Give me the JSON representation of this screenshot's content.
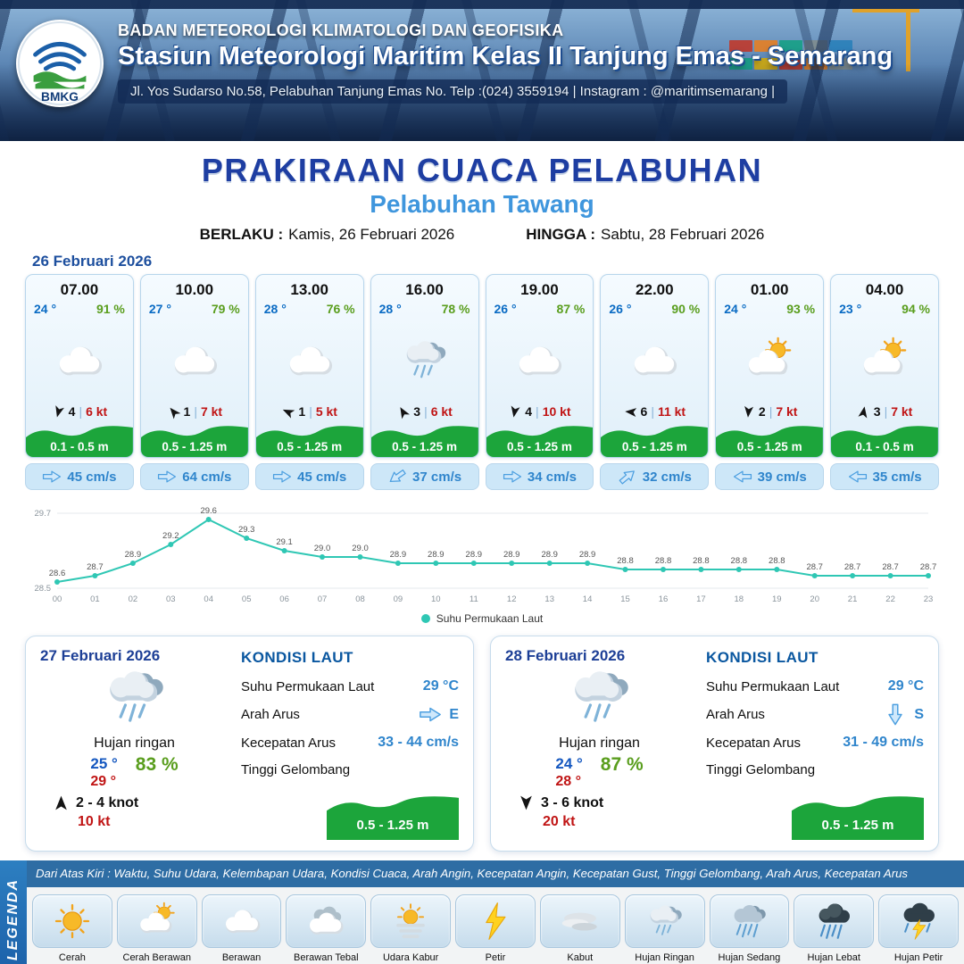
{
  "colors": {
    "titleBlue": "#1e3ea2",
    "portBlue": "#3f96dd",
    "tempBlue": "#0a6bc4",
    "rhGreen": "#5a9e1e",
    "red": "#c01414",
    "curBlue": "#2f85cc",
    "teal": "#2fc7b4",
    "green": "#1ca53b"
  },
  "header": {
    "logo": "BMKG",
    "agency": "BADAN METEOROLOGI KLIMATOLOGI DAN GEOFISIKA",
    "station": "Stasiun Meteorologi Maritim Kelas II Tanjung Emas - Semarang",
    "address": "Jl. Yos Sudarso No.58, Pelabuhan Tanjung Emas No. Telp :(024) 3559194 | Instagram : @maritimsemarang |"
  },
  "title": {
    "main": "PRAKIRAAN CUACA PELABUHAN",
    "port": "Pelabuhan Tawang",
    "berlaku_label": "BERLAKU :",
    "berlaku_value": "Kamis, 26 Februari 2026",
    "hingga_label": "HINGGA :",
    "hingga_value": "Sabtu, 28 Februari 2026"
  },
  "day1": {
    "date": "26 Februari 2026",
    "hours": [
      {
        "time": "07.00",
        "temp": "24 °",
        "rh": "91 %",
        "icon": "cloud",
        "wind_deg": 105,
        "wind_min": "4",
        "wind_max": "6 kt",
        "wave": "0.1 - 0.5 m",
        "cur_deg": 0,
        "cur": "45 cm/s"
      },
      {
        "time": "10.00",
        "temp": "27 °",
        "rh": "79 %",
        "icon": "cloud",
        "wind_deg": 230,
        "wind_min": "1",
        "wind_max": "7 kt",
        "wave": "0.5 - 1.25 m",
        "cur_deg": 0,
        "cur": "64 cm/s"
      },
      {
        "time": "13.00",
        "temp": "28 °",
        "rh": "76 %",
        "icon": "cloud",
        "wind_deg": 205,
        "wind_min": "1",
        "wind_max": "5 kt",
        "wave": "0.5 - 1.25 m",
        "cur_deg": 0,
        "cur": "45 cm/s"
      },
      {
        "time": "16.00",
        "temp": "28 °",
        "rh": "78 %",
        "icon": "rain",
        "wind_deg": 240,
        "wind_min": "3",
        "wind_max": "6 kt",
        "wave": "0.5 - 1.25 m",
        "cur_deg": 145,
        "cur": "37 cm/s"
      },
      {
        "time": "19.00",
        "temp": "26 °",
        "rh": "87 %",
        "icon": "cloud",
        "wind_deg": 100,
        "wind_min": "4",
        "wind_max": "10 kt",
        "wave": "0.5 - 1.25 m",
        "cur_deg": 0,
        "cur": "34 cm/s"
      },
      {
        "time": "22.00",
        "temp": "26 °",
        "rh": "90 %",
        "icon": "cloud",
        "wind_deg": 185,
        "wind_min": "6",
        "wind_max": "11 kt",
        "wave": "0.5 - 1.25 m",
        "cur_deg": -40,
        "cur": "32 cm/s"
      },
      {
        "time": "01.00",
        "temp": "24 °",
        "rh": "93 %",
        "icon": "suncloud",
        "wind_deg": 95,
        "wind_min": "2",
        "wind_max": "7 kt",
        "wave": "0.5 - 1.25 m",
        "cur_deg": 180,
        "cur": "39 cm/s"
      },
      {
        "time": "04.00",
        "temp": "23 °",
        "rh": "94 %",
        "icon": "suncloud",
        "wind_deg": 280,
        "wind_min": "3",
        "wind_max": "7 kt",
        "wave": "0.1 - 0.5 m",
        "cur_deg": 180,
        "cur": "35 cm/s"
      }
    ]
  },
  "chart_data": {
    "type": "line",
    "title": "Suhu Permukaan Laut",
    "legend": "Suhu Permukaan Laut",
    "x": [
      "00",
      "01",
      "02",
      "03",
      "04",
      "05",
      "06",
      "07",
      "08",
      "09",
      "10",
      "11",
      "12",
      "13",
      "14",
      "15",
      "16",
      "17",
      "18",
      "19",
      "20",
      "21",
      "22",
      "23"
    ],
    "values": [
      28.6,
      28.7,
      28.9,
      29.2,
      29.6,
      29.3,
      29.1,
      29.0,
      29.0,
      28.9,
      28.9,
      28.9,
      28.9,
      28.9,
      28.9,
      28.8,
      28.8,
      28.8,
      28.8,
      28.8,
      28.7,
      28.7,
      28.7,
      28.7
    ],
    "ylim": [
      28.5,
      29.7
    ],
    "xlabel": "",
    "ylabel": "",
    "grid": false,
    "legend_position": "bottom",
    "color": "#2fc7b4"
  },
  "day_cards": [
    {
      "date": "27 Februari 2026",
      "icon": "rain",
      "condition": "Hujan ringan",
      "temp_min": "25 °",
      "temp_max": "29 °",
      "rh": "83 %",
      "wind_deg": 270,
      "wind_range": "2 - 4 knot",
      "gust": "10 kt",
      "sea": {
        "heading": "KONDISI LAUT",
        "sst_label": "Suhu Permukaan Laut",
        "sst": "29 °C",
        "dir_label": "Arah Arus",
        "dir": "E",
        "dir_deg": 0,
        "speed_label": "Kecepatan Arus",
        "speed": "33 - 44 cm/s",
        "wave_label": "Tinggi Gelombang",
        "wave": "0.5 - 1.25 m"
      }
    },
    {
      "date": "28 Februari 2026",
      "icon": "rain",
      "condition": "Hujan ringan",
      "temp_min": "24 °",
      "temp_max": "28 °",
      "rh": "87 %",
      "wind_deg": 90,
      "wind_range": "3 - 6 knot",
      "gust": "20 kt",
      "sea": {
        "heading": "KONDISI LAUT",
        "sst_label": "Suhu Permukaan Laut",
        "sst": "29 °C",
        "dir_label": "Arah Arus",
        "dir": "S",
        "dir_deg": 90,
        "speed_label": "Kecepatan Arus",
        "speed": "31 - 49 cm/s",
        "wave_label": "Tinggi Gelombang",
        "wave": "0.5 - 1.25 m"
      }
    }
  ],
  "legend": {
    "side_label": "LEGENDA",
    "note": "Dari Atas Kiri : Waktu, Suhu Udara, Kelembapan Udara, Kondisi Cuaca, Arah Angin, Kecepatan Angin, Kecepatan Gust, Tinggi Gelombang, Arah Arus, Kecepatan Arus",
    "items": [
      {
        "label": "Cerah",
        "icon": "sun"
      },
      {
        "label": "Cerah Berawan",
        "icon": "suncloud"
      },
      {
        "label": "Berawan",
        "icon": "cloud"
      },
      {
        "label": "Berawan Tebal",
        "icon": "cloudthick"
      },
      {
        "label": "Udara Kabur",
        "icon": "haze"
      },
      {
        "label": "Petir",
        "icon": "bolt"
      },
      {
        "label": "Kabut",
        "icon": "fog"
      },
      {
        "label": "Hujan Ringan",
        "icon": "rain"
      },
      {
        "label": "Hujan Sedang",
        "icon": "rainmed"
      },
      {
        "label": "Hujan Lebat",
        "icon": "raindark"
      },
      {
        "label": "Hujan Petir",
        "icon": "storm"
      }
    ]
  }
}
